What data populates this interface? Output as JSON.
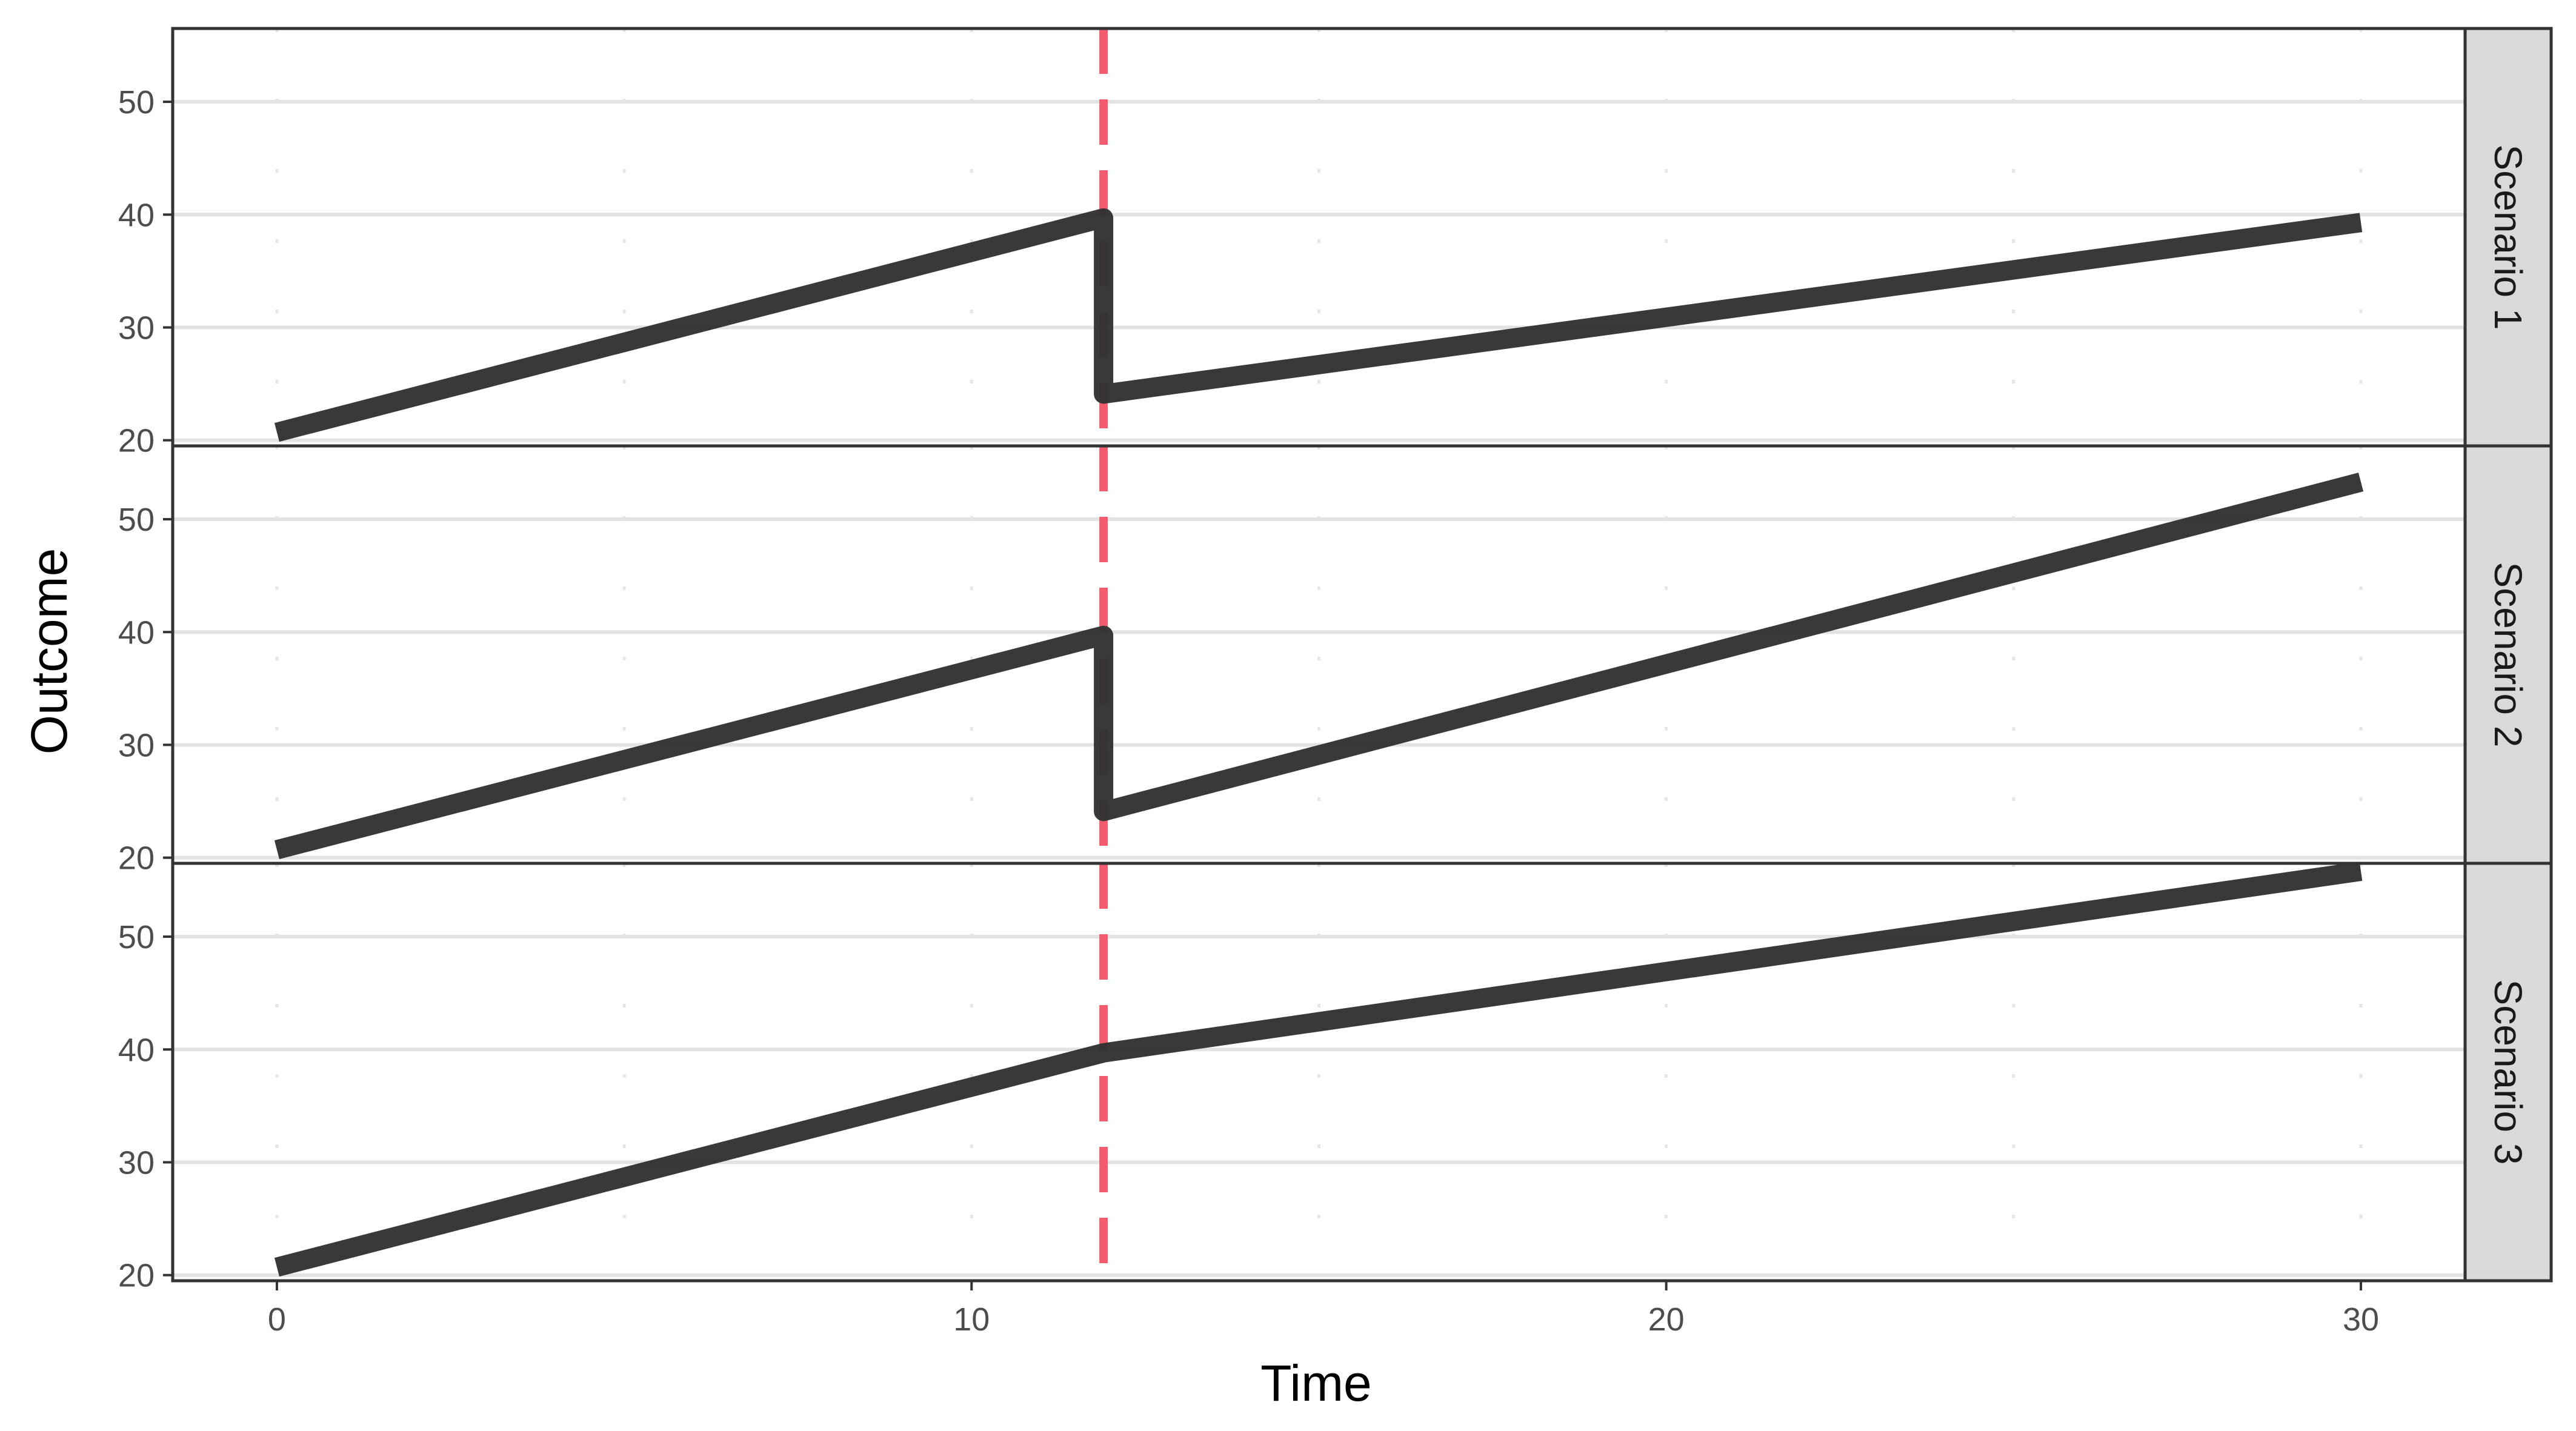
{
  "chart_data": {
    "type": "line",
    "xlabel": "Time",
    "ylabel": "Outcome",
    "xlim": [
      -1.5,
      31.5
    ],
    "ylim": [
      19.5,
      56.5
    ],
    "x_ticks": [
      0,
      10,
      20,
      30
    ],
    "x_minor_ticks": [
      5,
      15,
      25
    ],
    "y_ticks": [
      20,
      30,
      40,
      50
    ],
    "grid": true,
    "intervention_x": 11.9,
    "colors": {
      "line": "#333333",
      "intervention": "#f25c6d",
      "strip_bg": "#d9d9d9",
      "grid": "#e3e3e3"
    },
    "panels": [
      {
        "strip": "Scenario 1",
        "x": [
          0,
          11.9,
          11.9,
          30
        ],
        "y": [
          20.7,
          39.7,
          24.1,
          39.3
        ]
      },
      {
        "strip": "Scenario 2",
        "x": [
          0,
          11.9,
          11.9,
          30
        ],
        "y": [
          20.7,
          39.7,
          24.1,
          53.3
        ]
      },
      {
        "strip": "Scenario 3",
        "x": [
          0,
          11.9,
          30
        ],
        "y": [
          20.7,
          39.7,
          55.8
        ]
      }
    ]
  }
}
